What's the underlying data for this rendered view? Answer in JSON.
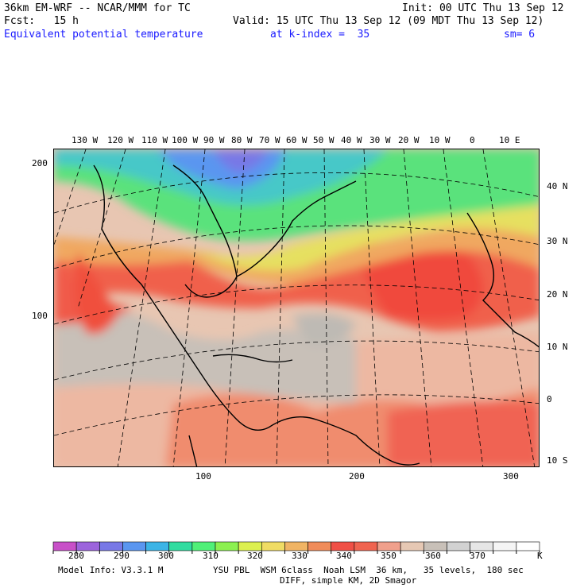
{
  "header": {
    "model_title": "36km EM-WRF -- NCAR/MMM for TC",
    "init": "Init: 00 UTC Thu 13 Sep 12",
    "fcst": "Fcst:   15 h",
    "valid": "Valid: 15 UTC Thu 13 Sep 12 (09 MDT Thu 13 Sep 12)",
    "field": "Equivalent potential temperature",
    "level": "at k-index =  35",
    "smooth": "sm= 6"
  },
  "map": {
    "lon_labels": [
      "130 W",
      "120 W",
      "110 W",
      "100 W",
      "90 W",
      "80 W",
      "70 W",
      "60 W",
      "50 W",
      "40 W",
      "30 W",
      "20 W",
      "10 W",
      "0",
      "10 E"
    ],
    "lat_labels": [
      "40 N",
      "30 N",
      "20 N",
      "10 N",
      "0",
      "10 S"
    ],
    "grid_y_labels": [
      "200",
      "100"
    ],
    "grid_x_labels": [
      "100",
      "200",
      "300"
    ]
  },
  "colorbar": {
    "colors": [
      "#c850c8",
      "#9c64dc",
      "#7878e6",
      "#5a96f0",
      "#3cb4e6",
      "#32dca0",
      "#50f078",
      "#8cf050",
      "#dcf050",
      "#f0dc64",
      "#f0b464",
      "#f08c5a",
      "#f05046",
      "#f06450",
      "#f0a08c",
      "#e6c8b4",
      "#c8c0b8",
      "#d2d2d2",
      "#e6e6e6",
      "#f5f5f5",
      "#ffffff"
    ],
    "tick_labels": [
      "280",
      "290",
      "300",
      "310",
      "320",
      "330",
      "340",
      "350",
      "360",
      "370",
      "K"
    ]
  },
  "footer": {
    "model_info": "Model Info: V3.3.1 M",
    "physics": "YSU PBL  WSM 6class  Noah LSM  36 km,   35 levels,  180 sec",
    "diff": "DIFF, simple KM, 2D Smagor"
  }
}
